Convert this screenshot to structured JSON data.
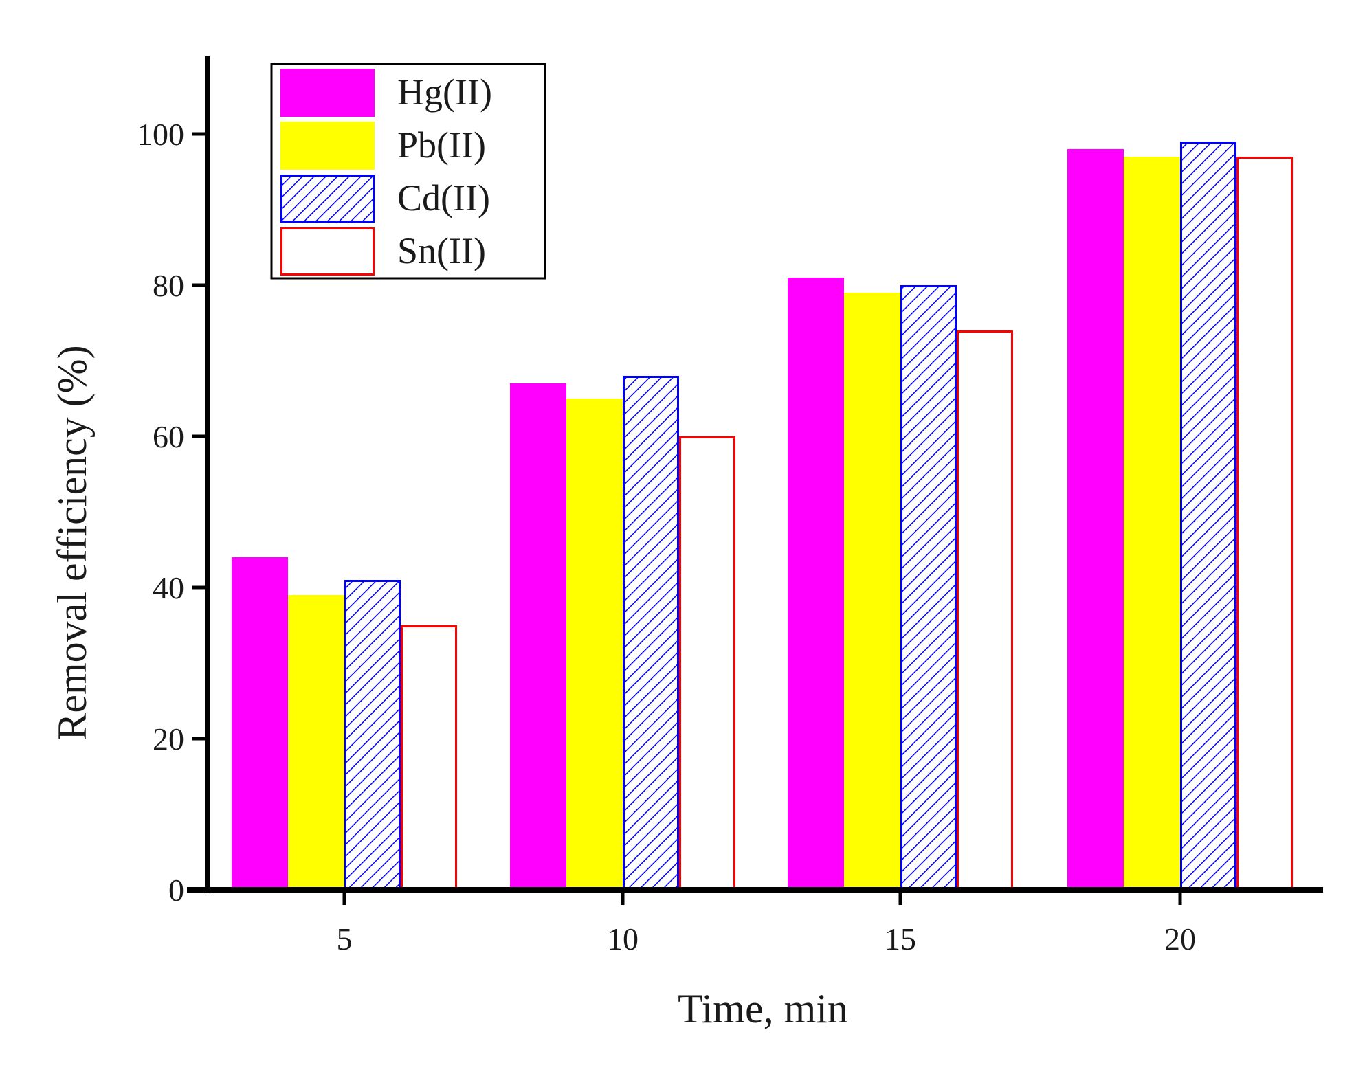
{
  "chart_data": {
    "type": "bar",
    "title": "",
    "xlabel": "Time, min",
    "ylabel": "Removal efficiency (%)",
    "categories": [
      "5",
      "10",
      "15",
      "20"
    ],
    "ylim": [
      0,
      110
    ],
    "yticks": [
      "0",
      "20",
      "40",
      "60",
      "80",
      "100"
    ],
    "grid": false,
    "legend_position": "top-left",
    "series": [
      {
        "name": "Hg(II)",
        "values": [
          44,
          67,
          81,
          98
        ],
        "fill": "#ff00ff",
        "stroke": "#ff00ff",
        "pattern": "solid"
      },
      {
        "name": "Pb(II)",
        "values": [
          39,
          65,
          79,
          97
        ],
        "fill": "#ffff00",
        "stroke": "#ffff00",
        "pattern": "solid"
      },
      {
        "name": "Cd(II)",
        "values": [
          41,
          68,
          80,
          99
        ],
        "fill": "#ffffff",
        "stroke": "#0000ff",
        "pattern": "hatch"
      },
      {
        "name": "Sn(II)",
        "values": [
          35,
          60,
          74,
          97
        ],
        "fill": "#ffffff",
        "stroke": "#ff0000",
        "pattern": "none"
      }
    ]
  }
}
